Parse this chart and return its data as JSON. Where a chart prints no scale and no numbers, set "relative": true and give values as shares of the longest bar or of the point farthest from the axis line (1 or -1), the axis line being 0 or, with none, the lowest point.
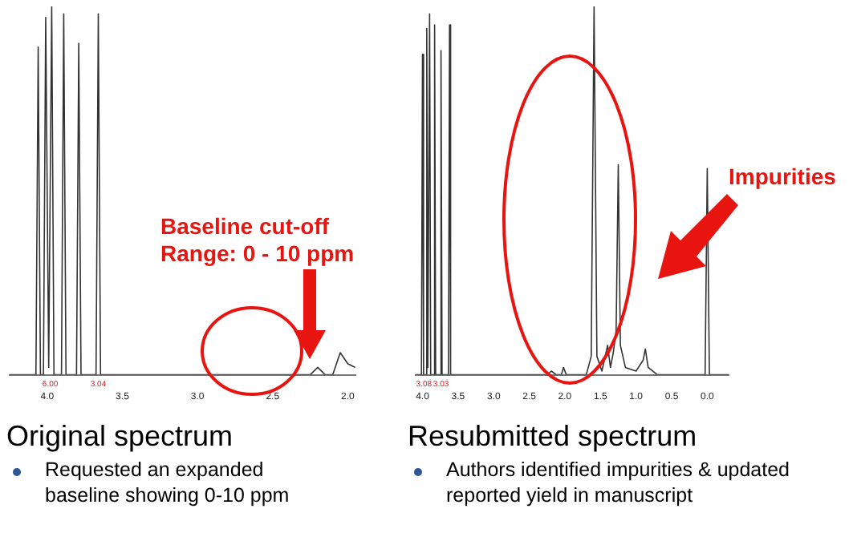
{
  "chart_data": [
    {
      "type": "line",
      "title": "Original spectrum",
      "subtitle": "Requested an expanded baseline showing 0-10 ppm",
      "relative": true,
      "grid": false,
      "legend": false,
      "marker": "none",
      "line_style": "solid",
      "tick_labels": "x",
      "xlim": [
        4.25,
        1.95
      ],
      "xticks": [
        {
          "value": 4,
          "label": "4.0"
        },
        {
          "value": 3.5,
          "label": "3.5"
        },
        {
          "value": 3,
          "label": "3.0"
        },
        {
          "value": 2.5,
          "label": "2.5"
        },
        {
          "value": 2,
          "label": "2.0"
        }
      ],
      "series": [
        {
          "color": "#333333",
          "x": [
            4.25,
            4.075,
            4.06,
            4.045,
            4.025,
            4.01,
            3.99,
            3.97,
            3.955,
            3.905,
            3.89,
            3.875,
            3.805,
            3.79,
            3.775,
            3.675,
            3.66,
            3.645,
            2.25,
            2.2,
            2.15,
            2.1,
            2.05,
            2.0,
            1.95
          ],
          "values": [
            0,
            0,
            0.89,
            0,
            0,
            0.97,
            0.02,
            1,
            0,
            0,
            0.98,
            0,
            0,
            0.9,
            0,
            0,
            0.98,
            0,
            0,
            0.02,
            0,
            0,
            0.06,
            0.03,
            0.02
          ]
        }
      ],
      "annotations": [
        "Baseline cut-off\nRange: 0 - 10 ppm",
        {
          "text": "6.00",
          "x": 3.98,
          "y": 0
        },
        {
          "text": "3.04",
          "x": 3.66,
          "y": 0
        }
      ]
    },
    {
      "type": "line",
      "title": "Resubmitted spectrum",
      "subtitle": "Authors identified impurities & updated reported yield in manuscript",
      "relative": true,
      "grid": false,
      "legend": false,
      "marker": "none",
      "line_style": "solid",
      "tick_labels": "x",
      "xlim": [
        4.1,
        -0.3
      ],
      "xticks": [
        {
          "value": 4,
          "label": "4.0"
        },
        {
          "value": 3.5,
          "label": "3.5"
        },
        {
          "value": 3,
          "label": "3.0"
        },
        {
          "value": 2.5,
          "label": "2.5"
        },
        {
          "value": 2,
          "label": "2.0"
        },
        {
          "value": 1.5,
          "label": "1.5"
        },
        {
          "value": 1,
          "label": "1.0"
        },
        {
          "value": 0.5,
          "label": "0.5"
        },
        {
          "value": 0,
          "label": "0.0"
        }
      ],
      "series": [
        {
          "color": "#333333",
          "x": [
            4.1,
            4.015,
            4.0,
            3.985,
            3.955,
            3.94,
            3.925,
            3.9,
            3.885,
            3.845,
            3.83,
            3.815,
            3.755,
            3.74,
            3.725,
            3.635,
            3.62,
            3.605,
            2.25,
            2.19,
            2.12,
            2.05,
            2.02,
            1.98,
            1.7,
            1.63,
            1.59,
            1.55,
            1.48,
            1.4,
            1.36,
            1.32,
            1.28,
            1.25,
            1.22,
            1.15,
            1.0,
            0.9,
            0.87,
            0.83,
            0.7,
            0.03,
            0.0,
            -0.03,
            -0.3
          ],
          "values": [
            0,
            0,
            0.87,
            0,
            0,
            0.94,
            0.02,
            0.98,
            0,
            0,
            0.95,
            0,
            0,
            0.88,
            0,
            0,
            0.95,
            0,
            0,
            0.01,
            0,
            0,
            0.02,
            0,
            0,
            0.05,
            1,
            0.05,
            0.01,
            0.08,
            0.02,
            0.06,
            0.12,
            0.57,
            0.08,
            0.02,
            0.01,
            0.04,
            0.07,
            0.02,
            0,
            0,
            0.56,
            0,
            0
          ]
        }
      ],
      "annotations": [
        "Impurities",
        {
          "text": "3.08",
          "x": 3.98,
          "y": 0
        },
        {
          "text": "3.03",
          "x": 3.74,
          "y": 0
        }
      ]
    }
  ]
}
